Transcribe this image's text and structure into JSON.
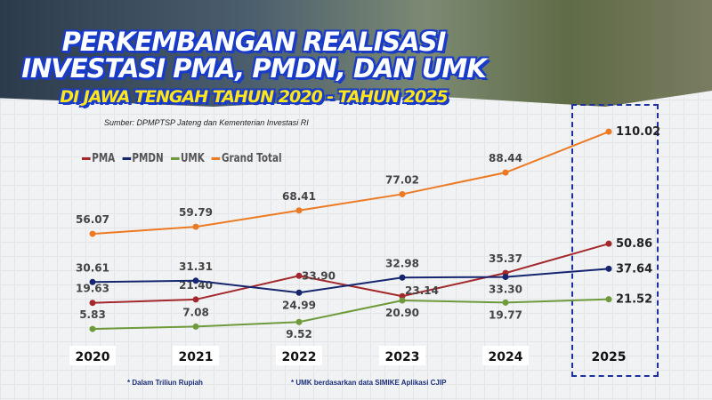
{
  "title": {
    "line1": "PERKEMBANGAN REALISASI",
    "line2": "INVESTASI PMA, PMDN, DAN UMK",
    "line3": "DI JAWA TENGAH TAHUN 2020 - TAHUN 2025"
  },
  "source": "Sumber: DPMPTSP Jateng dan Kementerian Investasi RI",
  "notes": [
    "* Dalam Triliun Rupiah",
    "* UMK berdasarkan data SIMIKE Aplikasi CJIP"
  ],
  "chart_data": {
    "type": "line",
    "categories": [
      "2020",
      "2021",
      "2022",
      "2023",
      "2024",
      "2025"
    ],
    "series": [
      {
        "name": "PMA",
        "color": "#a3282b",
        "values": [
          19.63,
          21.4,
          33.9,
          23.14,
          35.37,
          50.86
        ]
      },
      {
        "name": "PMDN",
        "color": "#15266e",
        "values": [
          30.61,
          31.31,
          24.99,
          32.98,
          33.3,
          37.64
        ]
      },
      {
        "name": "UMK",
        "color": "#6e9a3c",
        "values": [
          5.83,
          7.08,
          9.52,
          20.9,
          19.77,
          21.52
        ]
      },
      {
        "name": "Grand Total",
        "color": "#ec7a22",
        "values": [
          56.07,
          59.79,
          68.41,
          77.02,
          88.44,
          110.02
        ]
      }
    ],
    "legend": "top-left",
    "grid": false,
    "highlight": "2025",
    "unit": "Triliun Rupiah"
  }
}
